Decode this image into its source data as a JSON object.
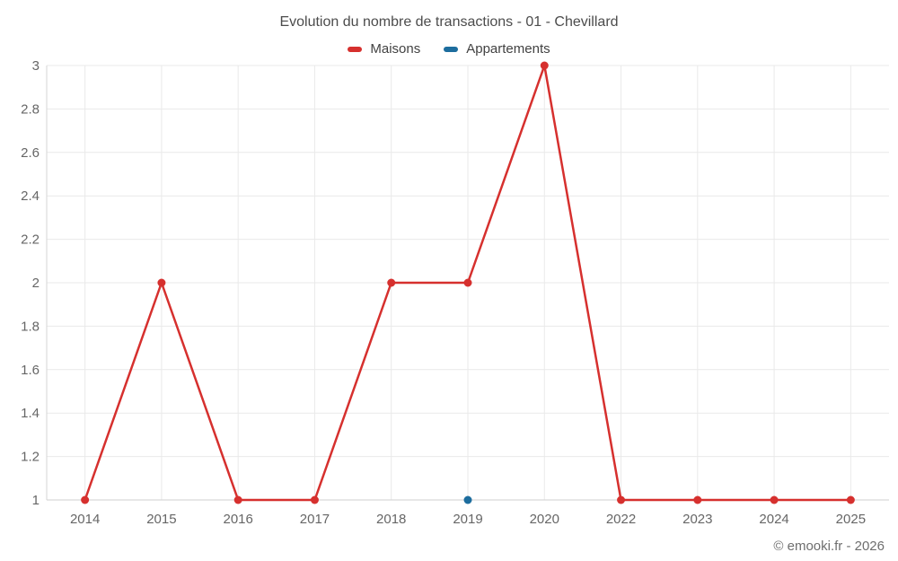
{
  "chart": {
    "title": "Evolution du nombre de transactions - 01 - Chevillard",
    "copyright": "© emooki.fr - 2026"
  },
  "chart_data": {
    "type": "line",
    "title": "Evolution du nombre de transactions - 01 - Chevillard",
    "categories": [
      "2014",
      "2015",
      "2016",
      "2017",
      "2018",
      "2019",
      "2020",
      "2022",
      "2023",
      "2024",
      "2025"
    ],
    "series": [
      {
        "name": "Maisons",
        "color": "#d6302e",
        "values": [
          1,
          2,
          1,
          1,
          2,
          2,
          3,
          1,
          1,
          1,
          1
        ]
      },
      {
        "name": "Appartements",
        "color": "#1d6d9e",
        "values": [
          null,
          null,
          null,
          null,
          null,
          1,
          null,
          null,
          null,
          null,
          null
        ]
      }
    ],
    "xlabel": "",
    "ylabel": "",
    "ylim": [
      1,
      3
    ],
    "yticks": [
      1,
      1.2,
      1.4,
      1.6,
      1.8,
      2,
      2.2,
      2.4,
      2.6,
      2.8,
      3
    ],
    "grid": true,
    "legend_position": "top"
  }
}
